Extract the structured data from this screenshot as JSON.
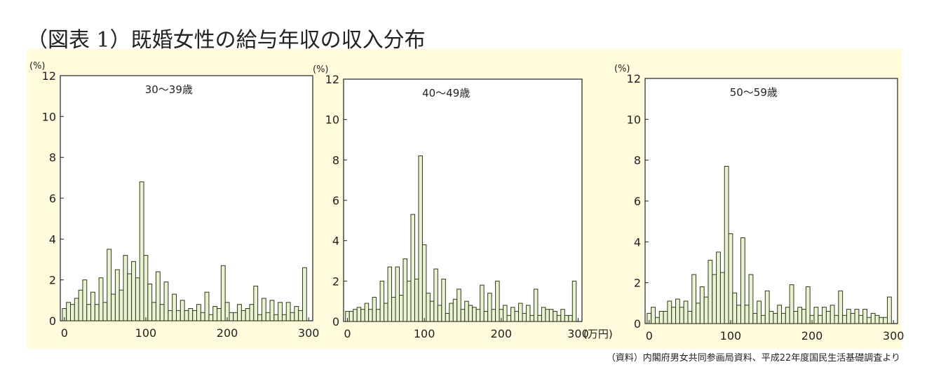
{
  "title": "（図表 1）既婚女性の給与年収の収入分布",
  "source": "（資料）内閣府男女共同参画局資料、平成22年度国民生活基礎調査より",
  "colors": {
    "bar_fill": "#eaf2d6",
    "bar_stroke": "#2e3a12",
    "panel_bg": "#fffbdc",
    "axis": "#222222"
  },
  "chart_data": [
    {
      "type": "bar",
      "annotation": "30～39歳",
      "y_unit_label": "(%)",
      "x_unit_label": "",
      "ylim": [
        0,
        12
      ],
      "y_ticks": [
        0,
        2,
        4,
        6,
        8,
        10,
        12
      ],
      "xlim": [
        -5,
        305
      ],
      "x_ticks": [
        0,
        100,
        200,
        300
      ],
      "x_tick_labels": [
        "0",
        "100",
        "200",
        "300"
      ],
      "bin_width": 5,
      "x": [
        0,
        5,
        10,
        15,
        20,
        25,
        30,
        35,
        40,
        45,
        50,
        55,
        60,
        65,
        70,
        75,
        80,
        85,
        90,
        95,
        100,
        105,
        110,
        115,
        120,
        125,
        130,
        135,
        140,
        145,
        150,
        155,
        160,
        165,
        170,
        175,
        180,
        185,
        190,
        195,
        200,
        205,
        210,
        215,
        220,
        225,
        230,
        235,
        240,
        245,
        250,
        255,
        260,
        265,
        270,
        275,
        280,
        285,
        290,
        295
      ],
      "values": [
        0.6,
        0.9,
        0.8,
        1.1,
        1.5,
        2.0,
        0.8,
        1.4,
        0.8,
        2.1,
        0.9,
        3.5,
        1.3,
        2.5,
        1.5,
        3.2,
        2.3,
        2.9,
        2.1,
        6.8,
        3.2,
        1.8,
        0.9,
        2.4,
        0.8,
        1.9,
        0.5,
        1.3,
        0.5,
        1.0,
        0.5,
        0.6,
        0.5,
        0.8,
        0.4,
        1.4,
        0.3,
        0.7,
        0.6,
        2.7,
        0.9,
        0.4,
        0.4,
        0.8,
        0.5,
        0.6,
        0.8,
        1.7,
        0.3,
        1.1,
        0.4,
        1.0,
        0.3,
        0.9,
        0.3,
        0.9,
        0.4,
        0.7,
        0.5,
        2.6
      ]
    },
    {
      "type": "bar",
      "annotation": "40～49歳",
      "y_unit_label": "(%)",
      "x_unit_label": "(万円)",
      "ylim": [
        0,
        12
      ],
      "y_ticks": [
        0,
        2,
        4,
        6,
        8,
        10,
        12
      ],
      "xlim": [
        -5,
        305
      ],
      "x_ticks": [
        0,
        100,
        200,
        300
      ],
      "x_tick_labels": [
        "0",
        "100",
        "200",
        "300"
      ],
      "bin_width": 5,
      "x": [
        0,
        5,
        10,
        15,
        20,
        25,
        30,
        35,
        40,
        45,
        50,
        55,
        60,
        65,
        70,
        75,
        80,
        85,
        90,
        95,
        100,
        105,
        110,
        115,
        120,
        125,
        130,
        135,
        140,
        145,
        150,
        155,
        160,
        165,
        170,
        175,
        180,
        185,
        190,
        195,
        200,
        205,
        210,
        215,
        220,
        225,
        230,
        235,
        240,
        245,
        250,
        255,
        260,
        265,
        270,
        275,
        280,
        285,
        290,
        295
      ],
      "values": [
        0.5,
        0.5,
        0.6,
        0.7,
        0.6,
        0.9,
        0.6,
        1.2,
        0.6,
        2.0,
        0.9,
        2.7,
        1.2,
        2.7,
        1.3,
        3.1,
        2.0,
        5.3,
        2.1,
        8.2,
        3.8,
        1.4,
        1.0,
        2.6,
        0.8,
        2.1,
        0.4,
        0.9,
        1.1,
        1.6,
        0.6,
        1.0,
        0.8,
        0.7,
        0.6,
        1.8,
        0.5,
        1.4,
        0.6,
        2.0,
        0.6,
        0.8,
        0.3,
        0.7,
        0.5,
        0.9,
        0.4,
        0.8,
        0.3,
        1.6,
        0.3,
        0.7,
        0.6,
        0.6,
        0.5,
        0.3,
        0.6,
        0.3,
        0.3,
        2.0
      ]
    },
    {
      "type": "bar",
      "annotation": "50～59歳",
      "y_unit_label": "(%)",
      "x_unit_label": "",
      "ylim": [
        0,
        12
      ],
      "y_ticks": [
        0,
        2,
        4,
        6,
        8,
        10,
        12
      ],
      "xlim": [
        -5,
        305
      ],
      "x_ticks": [
        0,
        100,
        200,
        300
      ],
      "x_tick_labels": [
        "0",
        "100",
        "200",
        "300"
      ],
      "bin_width": 5,
      "x": [
        0,
        5,
        10,
        15,
        20,
        25,
        30,
        35,
        40,
        45,
        50,
        55,
        60,
        65,
        70,
        75,
        80,
        85,
        90,
        95,
        100,
        105,
        110,
        115,
        120,
        125,
        130,
        135,
        140,
        145,
        150,
        155,
        160,
        165,
        170,
        175,
        180,
        185,
        190,
        195,
        200,
        205,
        210,
        215,
        220,
        225,
        230,
        235,
        240,
        245,
        250,
        255,
        260,
        265,
        270,
        275,
        280,
        285,
        290,
        295
      ],
      "values": [
        0.5,
        0.8,
        0.3,
        0.6,
        0.6,
        1.1,
        0.8,
        1.2,
        0.8,
        1.1,
        0.6,
        2.4,
        1.0,
        1.8,
        1.3,
        3.1,
        2.4,
        3.5,
        2.5,
        7.7,
        4.4,
        1.5,
        0.9,
        4.2,
        0.9,
        2.4,
        0.5,
        1.1,
        0.4,
        1.6,
        0.6,
        0.5,
        0.9,
        0.5,
        0.8,
        1.9,
        0.6,
        0.8,
        0.7,
        1.8,
        0.4,
        0.8,
        0.4,
        0.8,
        0.6,
        0.9,
        0.4,
        1.6,
        0.4,
        0.7,
        0.5,
        0.7,
        0.4,
        0.7,
        0.3,
        0.5,
        0.4,
        0.3,
        0.3,
        1.3
      ]
    }
  ]
}
